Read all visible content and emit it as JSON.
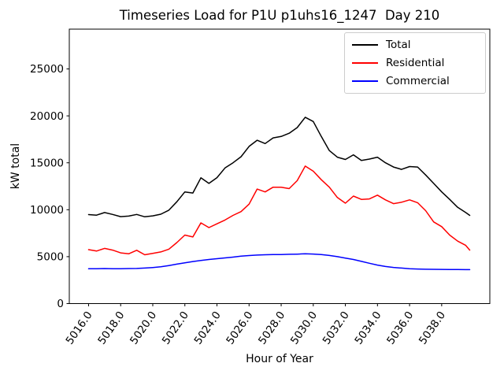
{
  "title": "Timeseries Load for P1U p1uhs16_1247  Day 210",
  "chart_data": {
    "type": "line",
    "title": "Timeseries Load for P1U p1uhs16_1247  Day 210",
    "xlabel": "Hour of Year",
    "ylabel": "kW total",
    "xlim": [
      5014.8,
      5041.0
    ],
    "ylim": [
      0,
      29240
    ],
    "grid": false,
    "legend_position": "upper right",
    "xtick_values": [
      5016,
      5018,
      5020,
      5022,
      5024,
      5026,
      5028,
      5030,
      5032,
      5034,
      5036,
      5038
    ],
    "xtick_labels": [
      "5016.0",
      "5018.0",
      "5020.0",
      "5022.0",
      "5024.0",
      "5026.0",
      "5028.0",
      "5030.0",
      "5032.0",
      "5034.0",
      "5036.0",
      "5038.0"
    ],
    "xtick_rotation_deg": 55,
    "ytick_values": [
      0,
      5000,
      10000,
      15000,
      20000,
      25000
    ],
    "ytick_labels": [
      "0",
      "5000",
      "10000",
      "15000",
      "20000",
      "25000"
    ],
    "x": [
      5016.0,
      5016.5,
      5017.0,
      5017.5,
      5018.0,
      5018.5,
      5019.0,
      5019.5,
      5020.0,
      5020.5,
      5021.0,
      5021.5,
      5022.0,
      5022.5,
      5023.0,
      5023.5,
      5024.0,
      5024.5,
      5025.0,
      5025.5,
      5026.0,
      5026.5,
      5027.0,
      5027.5,
      5028.0,
      5028.5,
      5029.0,
      5029.5,
      5030.0,
      5030.5,
      5031.0,
      5031.5,
      5032.0,
      5032.5,
      5033.0,
      5033.5,
      5034.0,
      5034.5,
      5035.0,
      5035.5,
      5036.0,
      5036.5,
      5037.0,
      5037.5,
      5038.0,
      5038.5,
      5039.0,
      5039.5,
      5039.75
    ],
    "series": [
      {
        "name": "Total",
        "color": "#000000",
        "values": [
          9480,
          9420,
          9700,
          9500,
          9260,
          9320,
          9500,
          9250,
          9350,
          9520,
          9950,
          10850,
          11900,
          11780,
          13400,
          12800,
          13420,
          14450,
          15000,
          15650,
          16750,
          17400,
          17050,
          17650,
          17800,
          18150,
          18750,
          19850,
          19400,
          17800,
          16300,
          15600,
          15350,
          15850,
          15250,
          15400,
          15600,
          15000,
          14550,
          14300,
          14600,
          14550,
          13700,
          12800,
          11900,
          11100,
          10250,
          9700,
          9400
        ]
      },
      {
        "name": "Residential",
        "color": "#ff0000",
        "values": [
          5750,
          5600,
          5880,
          5700,
          5400,
          5300,
          5680,
          5200,
          5350,
          5500,
          5800,
          6500,
          7300,
          7100,
          8600,
          8100,
          8500,
          8900,
          9400,
          9800,
          10600,
          12200,
          11900,
          12400,
          12400,
          12250,
          13100,
          14650,
          14100,
          13200,
          12400,
          11300,
          10700,
          11450,
          11100,
          11150,
          11550,
          11050,
          10650,
          10800,
          11050,
          10750,
          9900,
          8700,
          8200,
          7300,
          6650,
          6200,
          5700
        ]
      },
      {
        "name": "Commercial",
        "color": "#0000ff",
        "values": [
          3720,
          3720,
          3730,
          3720,
          3720,
          3730,
          3740,
          3780,
          3840,
          3920,
          4050,
          4200,
          4350,
          4480,
          4600,
          4700,
          4780,
          4870,
          4950,
          5050,
          5120,
          5170,
          5200,
          5220,
          5220,
          5250,
          5270,
          5300,
          5280,
          5220,
          5130,
          5000,
          4850,
          4700,
          4500,
          4300,
          4100,
          3950,
          3850,
          3780,
          3720,
          3680,
          3660,
          3650,
          3640,
          3630,
          3630,
          3620,
          3620
        ]
      }
    ]
  },
  "plot_style": {
    "background": "#ffffff",
    "spine_color": "#000000",
    "legend_border_color": "#cccccc",
    "line_width": 1.5
  }
}
